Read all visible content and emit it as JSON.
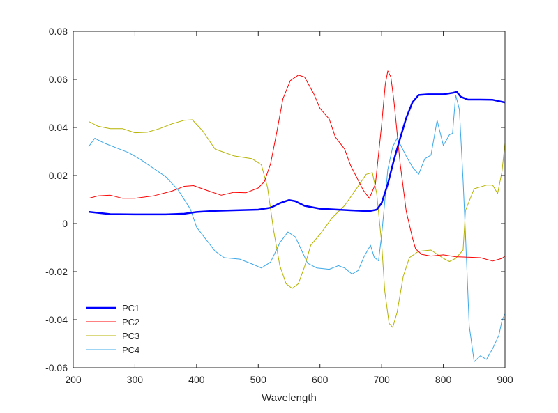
{
  "chart_data": {
    "type": "line",
    "title": "",
    "xlabel": "Wavelength",
    "ylabel": "",
    "xlim": [
      200,
      900
    ],
    "ylim": [
      -0.06,
      0.08
    ],
    "xticks": [
      200,
      300,
      400,
      500,
      600,
      700,
      800,
      900
    ],
    "yticks": [
      0.08,
      0.06,
      0.04,
      0.02,
      0,
      -0.02,
      -0.04,
      -0.06
    ],
    "xtick_labels": [
      "200",
      "300",
      "400",
      "500",
      "600",
      "700",
      "800",
      "900"
    ],
    "ytick_labels": [
      "0.08",
      "0.06",
      "0.04",
      "0.02",
      "0",
      "-0.02",
      "-0.04",
      "-0.06"
    ],
    "grid": false,
    "legend_position": "bottom-left",
    "series": [
      {
        "name": "PC1",
        "color": "#0000ff",
        "width": 2.5,
        "points": [
          [
            225,
            0.0049
          ],
          [
            260,
            0.0039
          ],
          [
            300,
            0.0038
          ],
          [
            350,
            0.0038
          ],
          [
            380,
            0.0041
          ],
          [
            400,
            0.0048
          ],
          [
            430,
            0.0053
          ],
          [
            460,
            0.0055
          ],
          [
            500,
            0.0058
          ],
          [
            520,
            0.0066
          ],
          [
            535,
            0.0085
          ],
          [
            550,
            0.0098
          ],
          [
            560,
            0.0093
          ],
          [
            575,
            0.0074
          ],
          [
            600,
            0.0062
          ],
          [
            650,
            0.0055
          ],
          [
            680,
            0.0052
          ],
          [
            692,
            0.0058
          ],
          [
            700,
            0.0085
          ],
          [
            710,
            0.0165
          ],
          [
            720,
            0.0265
          ],
          [
            730,
            0.0355
          ],
          [
            740,
            0.044
          ],
          [
            750,
            0.0505
          ],
          [
            760,
            0.0535
          ],
          [
            775,
            0.0538
          ],
          [
            800,
            0.0538
          ],
          [
            815,
            0.0544
          ],
          [
            822,
            0.0548
          ],
          [
            828,
            0.0528
          ],
          [
            840,
            0.0516
          ],
          [
            860,
            0.0516
          ],
          [
            880,
            0.0515
          ],
          [
            900,
            0.0504
          ]
        ]
      },
      {
        "name": "PC2",
        "color": "#ff0000",
        "width": 1,
        "points": [
          [
            225,
            0.0105
          ],
          [
            240,
            0.0115
          ],
          [
            260,
            0.0118
          ],
          [
            280,
            0.0105
          ],
          [
            300,
            0.0105
          ],
          [
            330,
            0.0115
          ],
          [
            360,
            0.0135
          ],
          [
            380,
            0.0155
          ],
          [
            395,
            0.0158
          ],
          [
            420,
            0.0135
          ],
          [
            440,
            0.0118
          ],
          [
            460,
            0.013
          ],
          [
            480,
            0.0128
          ],
          [
            500,
            0.0148
          ],
          [
            510,
            0.0175
          ],
          [
            520,
            0.025
          ],
          [
            530,
            0.038
          ],
          [
            540,
            0.052
          ],
          [
            552,
            0.0595
          ],
          [
            565,
            0.0618
          ],
          [
            575,
            0.061
          ],
          [
            590,
            0.054
          ],
          [
            600,
            0.048
          ],
          [
            615,
            0.0435
          ],
          [
            625,
            0.036
          ],
          [
            640,
            0.031
          ],
          [
            650,
            0.024
          ],
          [
            660,
            0.019
          ],
          [
            670,
            0.014
          ],
          [
            680,
            0.0105
          ],
          [
            690,
            0.0165
          ],
          [
            700,
            0.041
          ],
          [
            706,
            0.058
          ],
          [
            710,
            0.0635
          ],
          [
            715,
            0.061
          ],
          [
            720,
            0.051
          ],
          [
            730,
            0.025
          ],
          [
            740,
            0.005
          ],
          [
            750,
            -0.006
          ],
          [
            755,
            -0.0105
          ],
          [
            765,
            -0.0128
          ],
          [
            780,
            -0.0135
          ],
          [
            800,
            -0.013
          ],
          [
            820,
            -0.0138
          ],
          [
            840,
            -0.014
          ],
          [
            860,
            -0.0142
          ],
          [
            880,
            -0.0156
          ],
          [
            895,
            -0.0145
          ],
          [
            900,
            -0.0135
          ]
        ]
      },
      {
        "name": "PC3",
        "color": "#b5b300",
        "width": 1,
        "points": [
          [
            225,
            0.0425
          ],
          [
            240,
            0.0405
          ],
          [
            260,
            0.0395
          ],
          [
            280,
            0.0395
          ],
          [
            300,
            0.0378
          ],
          [
            320,
            0.038
          ],
          [
            340,
            0.0395
          ],
          [
            360,
            0.0415
          ],
          [
            380,
            0.043
          ],
          [
            393,
            0.0432
          ],
          [
            410,
            0.0385
          ],
          [
            430,
            0.031
          ],
          [
            460,
            0.0282
          ],
          [
            490,
            0.027
          ],
          [
            505,
            0.0245
          ],
          [
            515,
            0.015
          ],
          [
            525,
            -0.003
          ],
          [
            535,
            -0.0175
          ],
          [
            545,
            -0.025
          ],
          [
            555,
            -0.027
          ],
          [
            565,
            -0.025
          ],
          [
            575,
            -0.018
          ],
          [
            585,
            -0.009
          ],
          [
            600,
            -0.0045
          ],
          [
            620,
            0.0025
          ],
          [
            640,
            0.0075
          ],
          [
            660,
            0.0148
          ],
          [
            675,
            0.0205
          ],
          [
            685,
            0.0212
          ],
          [
            692,
            0.0125
          ],
          [
            700,
            -0.008
          ],
          [
            705,
            -0.028
          ],
          [
            712,
            -0.0415
          ],
          [
            718,
            -0.0432
          ],
          [
            725,
            -0.037
          ],
          [
            735,
            -0.022
          ],
          [
            745,
            -0.0142
          ],
          [
            760,
            -0.0115
          ],
          [
            780,
            -0.011
          ],
          [
            800,
            -0.0145
          ],
          [
            810,
            -0.0158
          ],
          [
            820,
            -0.0145
          ],
          [
            832,
            -0.011
          ],
          [
            836,
            0.0055
          ],
          [
            850,
            0.0145
          ],
          [
            870,
            0.016
          ],
          [
            880,
            0.016
          ],
          [
            888,
            0.0125
          ],
          [
            895,
            0.0215
          ],
          [
            900,
            0.0335
          ]
        ]
      },
      {
        "name": "PC4",
        "color": "#3da8e8",
        "width": 1,
        "points": [
          [
            225,
            0.032
          ],
          [
            235,
            0.0355
          ],
          [
            250,
            0.0335
          ],
          [
            270,
            0.0315
          ],
          [
            290,
            0.0295
          ],
          [
            310,
            0.0265
          ],
          [
            330,
            0.023
          ],
          [
            350,
            0.0195
          ],
          [
            370,
            0.014
          ],
          [
            390,
            0.006
          ],
          [
            400,
            -0.0015
          ],
          [
            415,
            -0.0065
          ],
          [
            430,
            -0.0115
          ],
          [
            445,
            -0.0142
          ],
          [
            470,
            -0.0148
          ],
          [
            490,
            -0.0168
          ],
          [
            505,
            -0.0185
          ],
          [
            520,
            -0.016
          ],
          [
            535,
            -0.008
          ],
          [
            548,
            -0.0035
          ],
          [
            560,
            -0.0055
          ],
          [
            570,
            -0.011
          ],
          [
            580,
            -0.0165
          ],
          [
            595,
            -0.0185
          ],
          [
            615,
            -0.019
          ],
          [
            630,
            -0.0175
          ],
          [
            640,
            -0.0185
          ],
          [
            652,
            -0.021
          ],
          [
            662,
            -0.0195
          ],
          [
            672,
            -0.0135
          ],
          [
            682,
            -0.009
          ],
          [
            688,
            -0.014
          ],
          [
            695,
            -0.0155
          ],
          [
            700,
            -0.005
          ],
          [
            710,
            0.0225
          ],
          [
            718,
            0.032
          ],
          [
            725,
            0.0355
          ],
          [
            740,
            0.028
          ],
          [
            750,
            0.0235
          ],
          [
            760,
            0.0205
          ],
          [
            770,
            0.027
          ],
          [
            780,
            0.0285
          ],
          [
            790,
            0.043
          ],
          [
            800,
            0.0325
          ],
          [
            810,
            0.037
          ],
          [
            815,
            0.0375
          ],
          [
            820,
            0.0535
          ],
          [
            826,
            0.0475
          ],
          [
            832,
            0.018
          ],
          [
            836,
            -0.005
          ],
          [
            842,
            -0.0425
          ],
          [
            850,
            -0.0575
          ],
          [
            860,
            -0.055
          ],
          [
            870,
            -0.0565
          ],
          [
            880,
            -0.052
          ],
          [
            890,
            -0.0465
          ],
          [
            895,
            -0.0405
          ],
          [
            900,
            -0.0375
          ]
        ]
      }
    ]
  }
}
